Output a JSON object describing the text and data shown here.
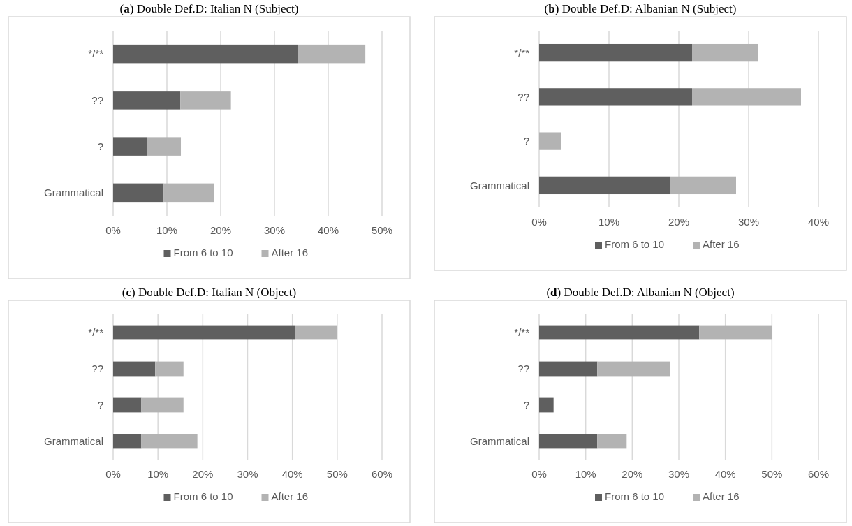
{
  "chart_data": [
    {
      "type": "bar",
      "orientation": "horizontal",
      "stacked": true,
      "title": "(a) Double Def.D: Italian N (Subject)",
      "categories": [
        "*/**",
        "??",
        "?",
        "Grammatical"
      ],
      "series": [
        {
          "name": "From 6 to 10",
          "color": "#5f5f5f",
          "values": [
            34.4,
            12.5,
            6.3,
            9.4
          ]
        },
        {
          "name": "After 16",
          "color": "#b3b3b3",
          "values": [
            12.5,
            9.4,
            6.3,
            9.4
          ]
        }
      ],
      "xlim": [
        0,
        50
      ],
      "xticks": [
        {
          "value": 0,
          "label": "0%"
        },
        {
          "value": 10,
          "label": "10%"
        },
        {
          "value": 20,
          "label": "20%"
        },
        {
          "value": 30,
          "label": "30%"
        },
        {
          "value": 40,
          "label": "40%"
        },
        {
          "value": 50,
          "label": "50%"
        }
      ],
      "grid": "x",
      "legend": "bottom"
    },
    {
      "type": "bar",
      "orientation": "horizontal",
      "stacked": true,
      "title": "(b) Double Def.D: Albanian N (Subject)",
      "categories": [
        "*/**",
        "??",
        "?",
        "Grammatical"
      ],
      "series": [
        {
          "name": "From 6 to 10",
          "color": "#5f5f5f",
          "values": [
            21.9,
            21.9,
            0,
            18.8
          ]
        },
        {
          "name": "After 16",
          "color": "#b3b3b3",
          "values": [
            9.4,
            15.6,
            3.1,
            9.4
          ]
        }
      ],
      "xlim": [
        0,
        40
      ],
      "xticks": [
        {
          "value": 0,
          "label": "0%"
        },
        {
          "value": 10,
          "label": "10%"
        },
        {
          "value": 20,
          "label": "20%"
        },
        {
          "value": 30,
          "label": "30%"
        },
        {
          "value": 40,
          "label": "40%"
        }
      ],
      "grid": "x",
      "legend": "bottom"
    },
    {
      "type": "bar",
      "orientation": "horizontal",
      "stacked": true,
      "title": "(c) Double Def.D: Italian N (Object)",
      "categories": [
        "*/**",
        "??",
        "?",
        "Grammatical"
      ],
      "series": [
        {
          "name": "From 6 to 10",
          "color": "#5f5f5f",
          "values": [
            40.6,
            9.4,
            6.3,
            6.3
          ]
        },
        {
          "name": "After 16",
          "color": "#b3b3b3",
          "values": [
            9.4,
            6.3,
            9.4,
            12.5
          ]
        }
      ],
      "xlim": [
        0,
        60
      ],
      "xticks": [
        {
          "value": 0,
          "label": "0%"
        },
        {
          "value": 10,
          "label": "10%"
        },
        {
          "value": 20,
          "label": "20%"
        },
        {
          "value": 30,
          "label": "30%"
        },
        {
          "value": 40,
          "label": "40%"
        },
        {
          "value": 50,
          "label": "50%"
        },
        {
          "value": 60,
          "label": "60%"
        }
      ],
      "grid": "x",
      "legend": "bottom"
    },
    {
      "type": "bar",
      "orientation": "horizontal",
      "stacked": true,
      "title": "(d) Double Def.D: Albanian N (Object)",
      "categories": [
        "*/**",
        "??",
        "?",
        "Grammatical"
      ],
      "series": [
        {
          "name": "From 6 to 10",
          "color": "#5f5f5f",
          "values": [
            34.4,
            12.5,
            3.1,
            12.5
          ]
        },
        {
          "name": "After 16",
          "color": "#b3b3b3",
          "values": [
            15.6,
            15.6,
            0,
            6.3
          ]
        }
      ],
      "xlim": [
        0,
        60
      ],
      "xticks": [
        {
          "value": 0,
          "label": "0%"
        },
        {
          "value": 10,
          "label": "10%"
        },
        {
          "value": 20,
          "label": "20%"
        },
        {
          "value": 30,
          "label": "30%"
        },
        {
          "value": 40,
          "label": "40%"
        },
        {
          "value": 50,
          "label": "50%"
        },
        {
          "value": 60,
          "label": "60%"
        }
      ],
      "grid": "x",
      "legend": "bottom"
    }
  ]
}
